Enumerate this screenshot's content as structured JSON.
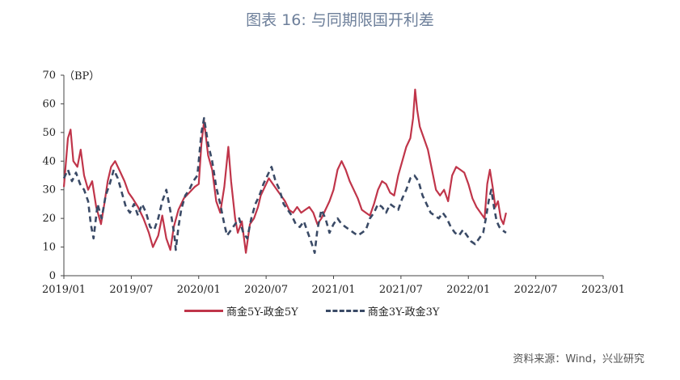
{
  "title": "图表 16: 与同期限国开利差",
  "source": "资料来源：Wind，兴业研究",
  "chart_data": {
    "type": "line",
    "ylabel": "（BP）",
    "ylim": [
      0,
      70
    ],
    "yticks": [
      0,
      10,
      20,
      30,
      40,
      50,
      60,
      70
    ],
    "xticks": [
      "2019/01",
      "2019/07",
      "2020/01",
      "2020/07",
      "2021/01",
      "2021/07",
      "2022/01",
      "2022/07",
      "2023/01"
    ],
    "x_start": "2019/01",
    "x_end": "2023/01",
    "grid": false,
    "legend_position": "bottom",
    "series": [
      {
        "name": "商金5Y-政金5Y",
        "color": "#c0354a",
        "style": "solid",
        "values": [
          [
            0.0,
            31
          ],
          [
            0.06,
            48
          ],
          [
            0.1,
            51
          ],
          [
            0.14,
            40
          ],
          [
            0.2,
            38
          ],
          [
            0.25,
            44
          ],
          [
            0.3,
            35
          ],
          [
            0.36,
            30
          ],
          [
            0.42,
            33
          ],
          [
            0.48,
            24
          ],
          [
            0.55,
            18
          ],
          [
            0.6,
            25
          ],
          [
            0.65,
            33
          ],
          [
            0.7,
            38
          ],
          [
            0.76,
            40
          ],
          [
            0.82,
            37
          ],
          [
            0.9,
            33
          ],
          [
            0.96,
            29
          ],
          [
            1.02,
            27
          ],
          [
            1.1,
            24
          ],
          [
            1.18,
            20
          ],
          [
            1.26,
            15
          ],
          [
            1.32,
            10
          ],
          [
            1.4,
            14
          ],
          [
            1.46,
            21
          ],
          [
            1.52,
            13
          ],
          [
            1.58,
            9
          ],
          [
            1.63,
            17
          ],
          [
            1.7,
            23
          ],
          [
            1.78,
            27
          ],
          [
            1.86,
            29
          ],
          [
            1.94,
            31
          ],
          [
            2.0,
            32
          ],
          [
            2.04,
            46
          ],
          [
            2.08,
            54
          ],
          [
            2.14,
            42
          ],
          [
            2.2,
            37
          ],
          [
            2.26,
            26
          ],
          [
            2.32,
            22
          ],
          [
            2.38,
            31
          ],
          [
            2.44,
            45
          ],
          [
            2.48,
            33
          ],
          [
            2.54,
            20
          ],
          [
            2.58,
            15
          ],
          [
            2.64,
            19
          ],
          [
            2.7,
            8
          ],
          [
            2.76,
            18
          ],
          [
            2.82,
            20
          ],
          [
            2.88,
            24
          ],
          [
            2.92,
            28
          ],
          [
            2.98,
            31
          ],
          [
            3.04,
            34
          ],
          [
            3.1,
            32
          ],
          [
            3.16,
            30
          ],
          [
            3.22,
            28
          ],
          [
            3.28,
            26
          ],
          [
            3.34,
            23
          ],
          [
            3.4,
            22
          ],
          [
            3.46,
            24
          ],
          [
            3.52,
            22
          ],
          [
            3.58,
            23
          ],
          [
            3.64,
            24
          ],
          [
            3.7,
            22
          ],
          [
            3.76,
            18
          ],
          [
            3.82,
            20
          ],
          [
            3.88,
            23
          ],
          [
            3.94,
            26
          ],
          [
            4.0,
            30
          ],
          [
            4.06,
            37
          ],
          [
            4.12,
            40
          ],
          [
            4.18,
            37
          ],
          [
            4.24,
            33
          ],
          [
            4.3,
            30
          ],
          [
            4.36,
            27
          ],
          [
            4.42,
            23
          ],
          [
            4.48,
            22
          ],
          [
            4.54,
            21
          ],
          [
            4.6,
            25
          ],
          [
            4.66,
            30
          ],
          [
            4.72,
            33
          ],
          [
            4.78,
            32
          ],
          [
            4.84,
            29
          ],
          [
            4.9,
            28
          ],
          [
            4.96,
            35
          ],
          [
            5.02,
            40
          ],
          [
            5.08,
            45
          ],
          [
            5.14,
            48
          ],
          [
            5.18,
            55
          ],
          [
            5.21,
            65
          ],
          [
            5.24,
            58
          ],
          [
            5.28,
            52
          ],
          [
            5.34,
            48
          ],
          [
            5.4,
            44
          ],
          [
            5.46,
            37
          ],
          [
            5.52,
            30
          ],
          [
            5.58,
            28
          ],
          [
            5.64,
            30
          ],
          [
            5.7,
            26
          ],
          [
            5.76,
            35
          ],
          [
            5.82,
            38
          ],
          [
            5.88,
            37
          ],
          [
            5.94,
            36
          ],
          [
            6.0,
            32
          ],
          [
            6.06,
            27
          ],
          [
            6.12,
            24
          ],
          [
            6.18,
            22
          ],
          [
            6.24,
            20
          ],
          [
            6.28,
            32
          ],
          [
            6.32,
            37
          ],
          [
            6.36,
            31
          ],
          [
            6.4,
            24
          ],
          [
            6.44,
            26
          ],
          [
            6.48,
            20
          ],
          [
            6.52,
            18
          ],
          [
            6.56,
            22
          ]
        ]
      },
      {
        "name": "商金3Y-政金3Y",
        "color": "#3a4a66",
        "style": "dashed",
        "values": [
          [
            0.0,
            34
          ],
          [
            0.06,
            37
          ],
          [
            0.12,
            33
          ],
          [
            0.18,
            36
          ],
          [
            0.24,
            32
          ],
          [
            0.3,
            30
          ],
          [
            0.36,
            26
          ],
          [
            0.4,
            18
          ],
          [
            0.44,
            13
          ],
          [
            0.5,
            25
          ],
          [
            0.56,
            20
          ],
          [
            0.62,
            28
          ],
          [
            0.68,
            32
          ],
          [
            0.74,
            37
          ],
          [
            0.8,
            34
          ],
          [
            0.86,
            29
          ],
          [
            0.92,
            24
          ],
          [
            0.98,
            22
          ],
          [
            1.04,
            25
          ],
          [
            1.1,
            21
          ],
          [
            1.16,
            25
          ],
          [
            1.22,
            22
          ],
          [
            1.28,
            17
          ],
          [
            1.34,
            16
          ],
          [
            1.4,
            20
          ],
          [
            1.46,
            26
          ],
          [
            1.52,
            30
          ],
          [
            1.56,
            25
          ],
          [
            1.6,
            20
          ],
          [
            1.64,
            14
          ],
          [
            1.66,
            9
          ],
          [
            1.7,
            17
          ],
          [
            1.74,
            23
          ],
          [
            1.8,
            28
          ],
          [
            1.86,
            30
          ],
          [
            1.92,
            33
          ],
          [
            1.98,
            35
          ],
          [
            2.04,
            50
          ],
          [
            2.08,
            55
          ],
          [
            2.14,
            46
          ],
          [
            2.2,
            40
          ],
          [
            2.26,
            31
          ],
          [
            2.32,
            25
          ],
          [
            2.38,
            18
          ],
          [
            2.42,
            14
          ],
          [
            2.48,
            16
          ],
          [
            2.54,
            18
          ],
          [
            2.6,
            20
          ],
          [
            2.66,
            15
          ],
          [
            2.72,
            13
          ],
          [
            2.78,
            20
          ],
          [
            2.84,
            25
          ],
          [
            2.9,
            28
          ],
          [
            2.96,
            32
          ],
          [
            3.02,
            35
          ],
          [
            3.08,
            38
          ],
          [
            3.14,
            33
          ],
          [
            3.2,
            30
          ],
          [
            3.26,
            25
          ],
          [
            3.32,
            23
          ],
          [
            3.38,
            21
          ],
          [
            3.44,
            18
          ],
          [
            3.5,
            17
          ],
          [
            3.56,
            19
          ],
          [
            3.62,
            15
          ],
          [
            3.68,
            11
          ],
          [
            3.72,
            8
          ],
          [
            3.76,
            16
          ],
          [
            3.82,
            23
          ],
          [
            3.88,
            20
          ],
          [
            3.94,
            15
          ],
          [
            4.0,
            18
          ],
          [
            4.06,
            20
          ],
          [
            4.12,
            18
          ],
          [
            4.18,
            17
          ],
          [
            4.24,
            16
          ],
          [
            4.3,
            15
          ],
          [
            4.36,
            14
          ],
          [
            4.42,
            15
          ],
          [
            4.48,
            16
          ],
          [
            4.54,
            20
          ],
          [
            4.6,
            22
          ],
          [
            4.66,
            25
          ],
          [
            4.72,
            24
          ],
          [
            4.78,
            22
          ],
          [
            4.84,
            25
          ],
          [
            4.9,
            24
          ],
          [
            4.96,
            23
          ],
          [
            5.02,
            27
          ],
          [
            5.08,
            30
          ],
          [
            5.14,
            34
          ],
          [
            5.2,
            35
          ],
          [
            5.26,
            33
          ],
          [
            5.32,
            28
          ],
          [
            5.38,
            25
          ],
          [
            5.44,
            22
          ],
          [
            5.5,
            21
          ],
          [
            5.56,
            20
          ],
          [
            5.62,
            22
          ],
          [
            5.68,
            20
          ],
          [
            5.74,
            17
          ],
          [
            5.8,
            15
          ],
          [
            5.86,
            14
          ],
          [
            5.92,
            16
          ],
          [
            5.98,
            14
          ],
          [
            6.04,
            12
          ],
          [
            6.1,
            11
          ],
          [
            6.16,
            13
          ],
          [
            6.22,
            15
          ],
          [
            6.26,
            20
          ],
          [
            6.3,
            26
          ],
          [
            6.34,
            30
          ],
          [
            6.38,
            24
          ],
          [
            6.42,
            19
          ],
          [
            6.46,
            17
          ],
          [
            6.5,
            16
          ],
          [
            6.56,
            15
          ]
        ]
      }
    ]
  }
}
